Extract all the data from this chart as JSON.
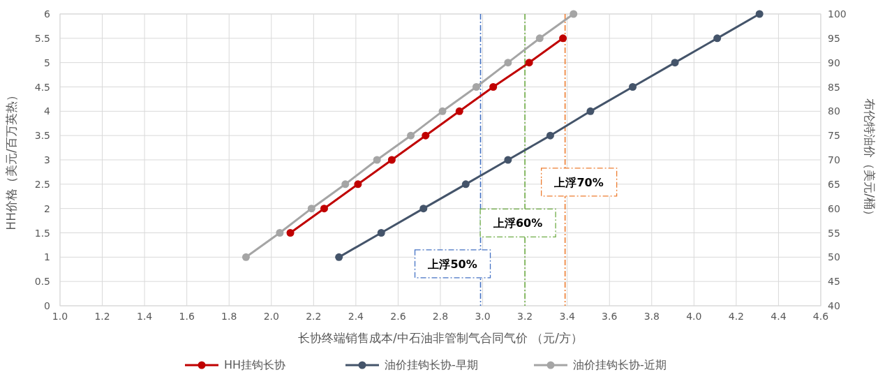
{
  "chart_data": {
    "type": "line",
    "xlabel": "长协终端销售成本/中石油非管制气合同气价 （元/方）",
    "ylabel": "HH价格（美元/百万英热）",
    "y2label": "布伦特油价（美元/桶）",
    "xlim": [
      1.0,
      4.6
    ],
    "xticks": [
      {
        "value": 1.0,
        "label": "1.0"
      },
      1.2,
      1.4,
      1.6,
      1.8,
      {
        "value": 2.0,
        "label": "2.0"
      },
      2.2,
      2.4,
      2.6,
      2.8,
      {
        "value": 3.0,
        "label": "3.0"
      },
      3.2,
      3.4,
      3.6,
      3.8,
      {
        "value": 4.0,
        "label": "4.0"
      },
      4.2,
      4.4,
      4.6
    ],
    "ylim": [
      0,
      6
    ],
    "yticks": [
      0,
      0.5,
      1,
      1.5,
      2,
      2.5,
      3,
      3.5,
      4,
      4.5,
      5,
      5.5,
      6
    ],
    "y2lim": [
      40,
      100
    ],
    "y2ticks": [
      40,
      45,
      50,
      55,
      60,
      65,
      70,
      75,
      80,
      85,
      90,
      95,
      100
    ],
    "grid": true,
    "legend": "bottom",
    "marker": "circle",
    "line_style": "solid",
    "series": [
      {
        "name": "HH挂钩长协",
        "color": "#c00000",
        "x": [
          2.09,
          2.25,
          2.41,
          2.57,
          2.73,
          2.89,
          3.05,
          3.22,
          3.38
        ],
        "values": [
          1.5,
          2,
          2.5,
          3,
          3.5,
          4,
          4.5,
          5,
          5.5
        ]
      },
      {
        "name": "油价挂钩长协-早期",
        "color": "#44546a",
        "axis": "y2",
        "x": [
          2.32,
          2.52,
          2.72,
          2.92,
          3.12,
          3.32,
          3.51,
          3.71,
          3.91,
          4.11,
          4.31
        ],
        "values": [
          50,
          55,
          60,
          65,
          70,
          75,
          80,
          85,
          90,
          95,
          100
        ]
      },
      {
        "name": "油价挂钩长协-近期",
        "color": "#a5a5a5",
        "axis": "y2",
        "x": [
          1.88,
          2.04,
          2.19,
          2.35,
          2.5,
          2.66,
          2.81,
          2.97,
          3.12,
          3.27,
          3.43
        ],
        "values": [
          50,
          55,
          60,
          65,
          70,
          75,
          80,
          85,
          90,
          95,
          100
        ]
      }
    ],
    "ref_lines": [
      {
        "axis": "x",
        "value": 2.99,
        "label": "上浮50%",
        "color": "#4472c4",
        "line_style": "dashed"
      },
      {
        "axis": "x",
        "value": 3.2,
        "label": "上浮60%",
        "color": "#70ad47",
        "line_style": "dashed"
      },
      {
        "axis": "x",
        "value": 3.39,
        "label": "上浮70%",
        "color": "#ed7d31",
        "line_style": "dashed"
      }
    ]
  }
}
